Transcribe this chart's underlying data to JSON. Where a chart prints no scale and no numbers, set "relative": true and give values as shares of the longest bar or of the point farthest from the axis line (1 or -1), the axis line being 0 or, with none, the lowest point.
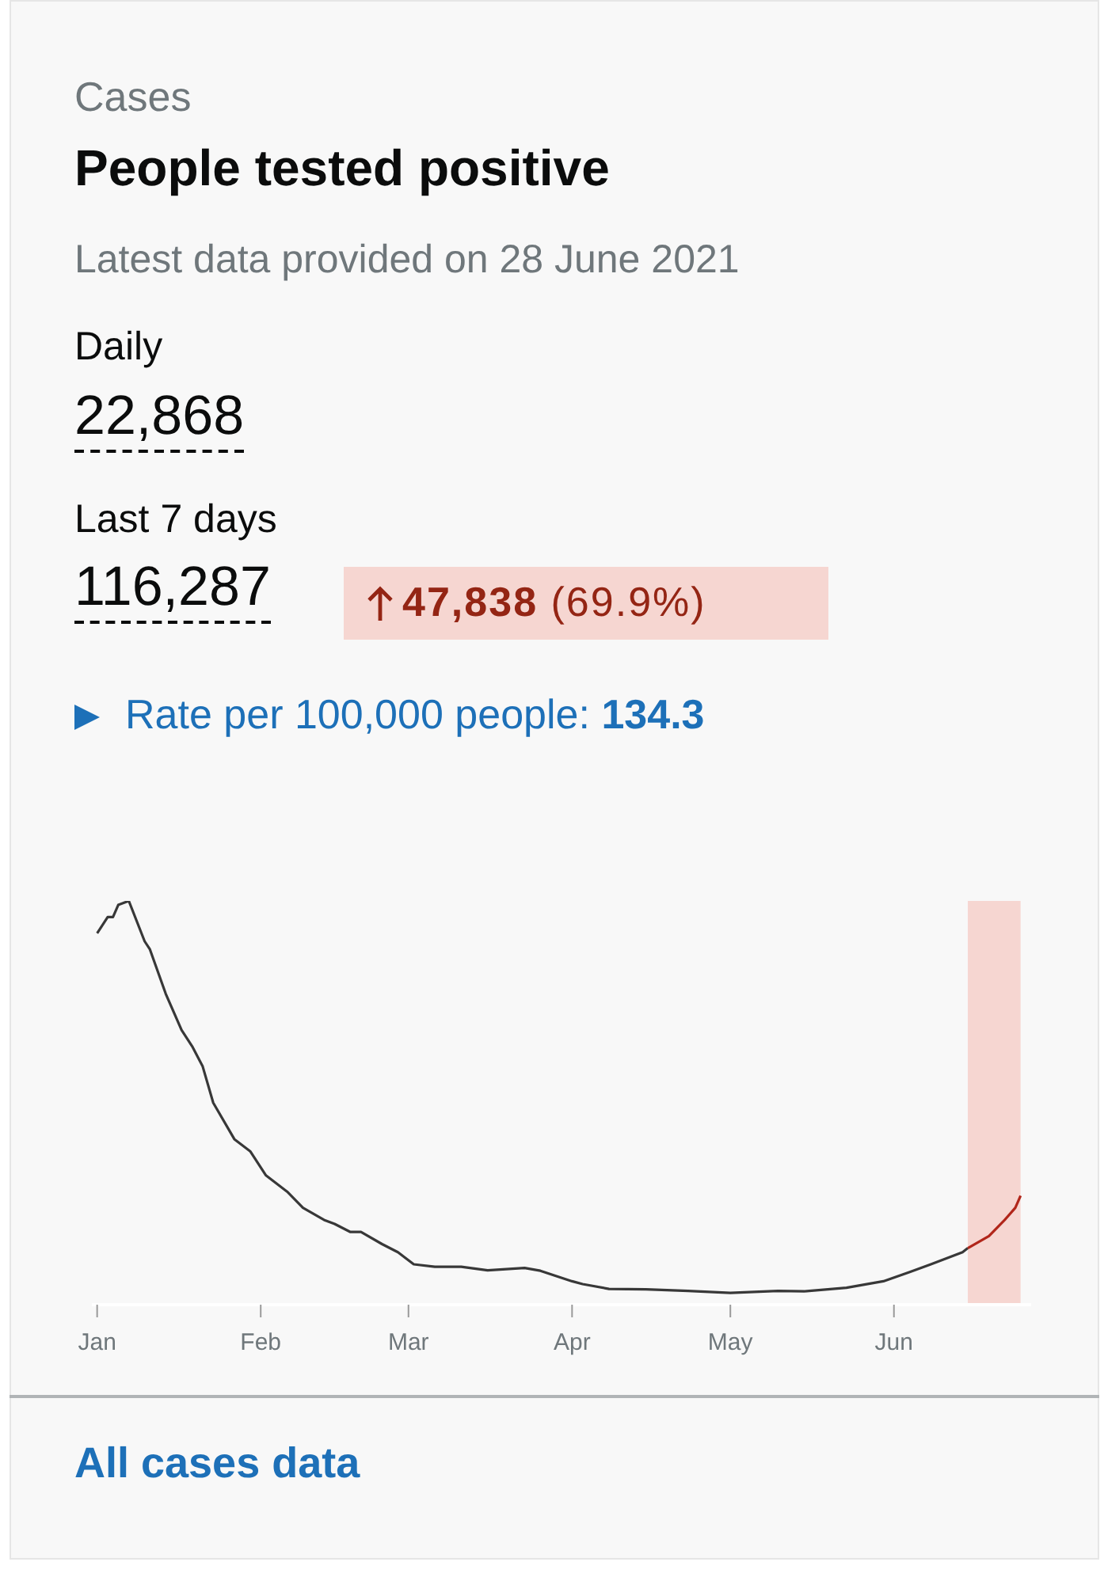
{
  "chart_data": {
    "type": "line",
    "title": "People tested positive",
    "subtitle": "Latest data provided on 28 June 2021",
    "annotations": [
      "Cases",
      "Daily",
      "22,868",
      "Last 7 days",
      "116,287",
      "47,838",
      "(69.9%)",
      "Rate per 100,000 people:",
      "134.3",
      "All cases data"
    ],
    "relative": true,
    "marker": "none",
    "line_style": "solid",
    "xlim": [
      "2020-12-31",
      "2021-06-27"
    ],
    "xticks": [
      {
        "value": "2021-01-01",
        "label": "Jan"
      },
      {
        "value": "2021-02-01",
        "label": "Feb"
      },
      {
        "value": "2021-03-01",
        "label": "Mar"
      },
      {
        "value": "2021-04-01",
        "label": "Apr"
      },
      {
        "value": "2021-05-01",
        "label": "May"
      },
      {
        "value": "2021-06-01",
        "label": "Jun"
      }
    ],
    "bands": [
      {
        "axis": "x",
        "from": "2021-06-15",
        "to": "2021-06-25",
        "color": "#f6d6d1"
      }
    ],
    "series": [
      {
        "color": "#383838",
        "x": [
          "2021-01-01",
          "2021-01-03",
          "2021-01-04",
          "2021-01-05",
          "2021-01-07",
          "2021-01-10",
          "2021-01-11",
          "2021-01-14",
          "2021-01-17",
          "2021-01-19",
          "2021-01-21",
          "2021-01-23",
          "2021-01-27",
          "2021-01-30",
          "2021-02-02",
          "2021-02-06",
          "2021-02-09",
          "2021-02-13",
          "2021-02-15",
          "2021-02-18",
          "2021-02-20",
          "2021-02-24",
          "2021-02-27",
          "2021-03-02",
          "2021-03-06",
          "2021-03-11",
          "2021-03-16",
          "2021-03-23",
          "2021-03-26",
          "2021-04-01",
          "2021-04-03",
          "2021-04-08",
          "2021-04-15",
          "2021-04-23",
          "2021-05-01",
          "2021-05-10",
          "2021-05-15",
          "2021-05-23",
          "2021-05-30",
          "2021-06-04",
          "2021-06-08",
          "2021-06-14",
          "2021-06-15"
        ],
        "values": [
          0.92,
          0.96,
          0.96,
          0.99,
          1,
          0.9,
          0.88,
          0.77,
          0.68,
          0.64,
          0.59,
          0.5,
          0.41,
          0.38,
          0.32,
          0.28,
          0.24,
          0.21,
          0.2,
          0.18,
          0.18,
          0.15,
          0.13,
          0.1,
          0.094,
          0.094,
          0.085,
          0.091,
          0.084,
          0.058,
          0.051,
          0.039,
          0.038,
          0.034,
          0.029,
          0.034,
          0.033,
          0.042,
          0.058,
          0.081,
          0.1,
          0.13,
          0.14
        ]
      },
      {
        "color": "#b1261a",
        "x": [
          "2021-06-15",
          "2021-06-19",
          "2021-06-22",
          "2021-06-24",
          "2021-06-25"
        ],
        "values": [
          0.14,
          0.17,
          0.21,
          0.24,
          0.27
        ]
      }
    ]
  }
}
